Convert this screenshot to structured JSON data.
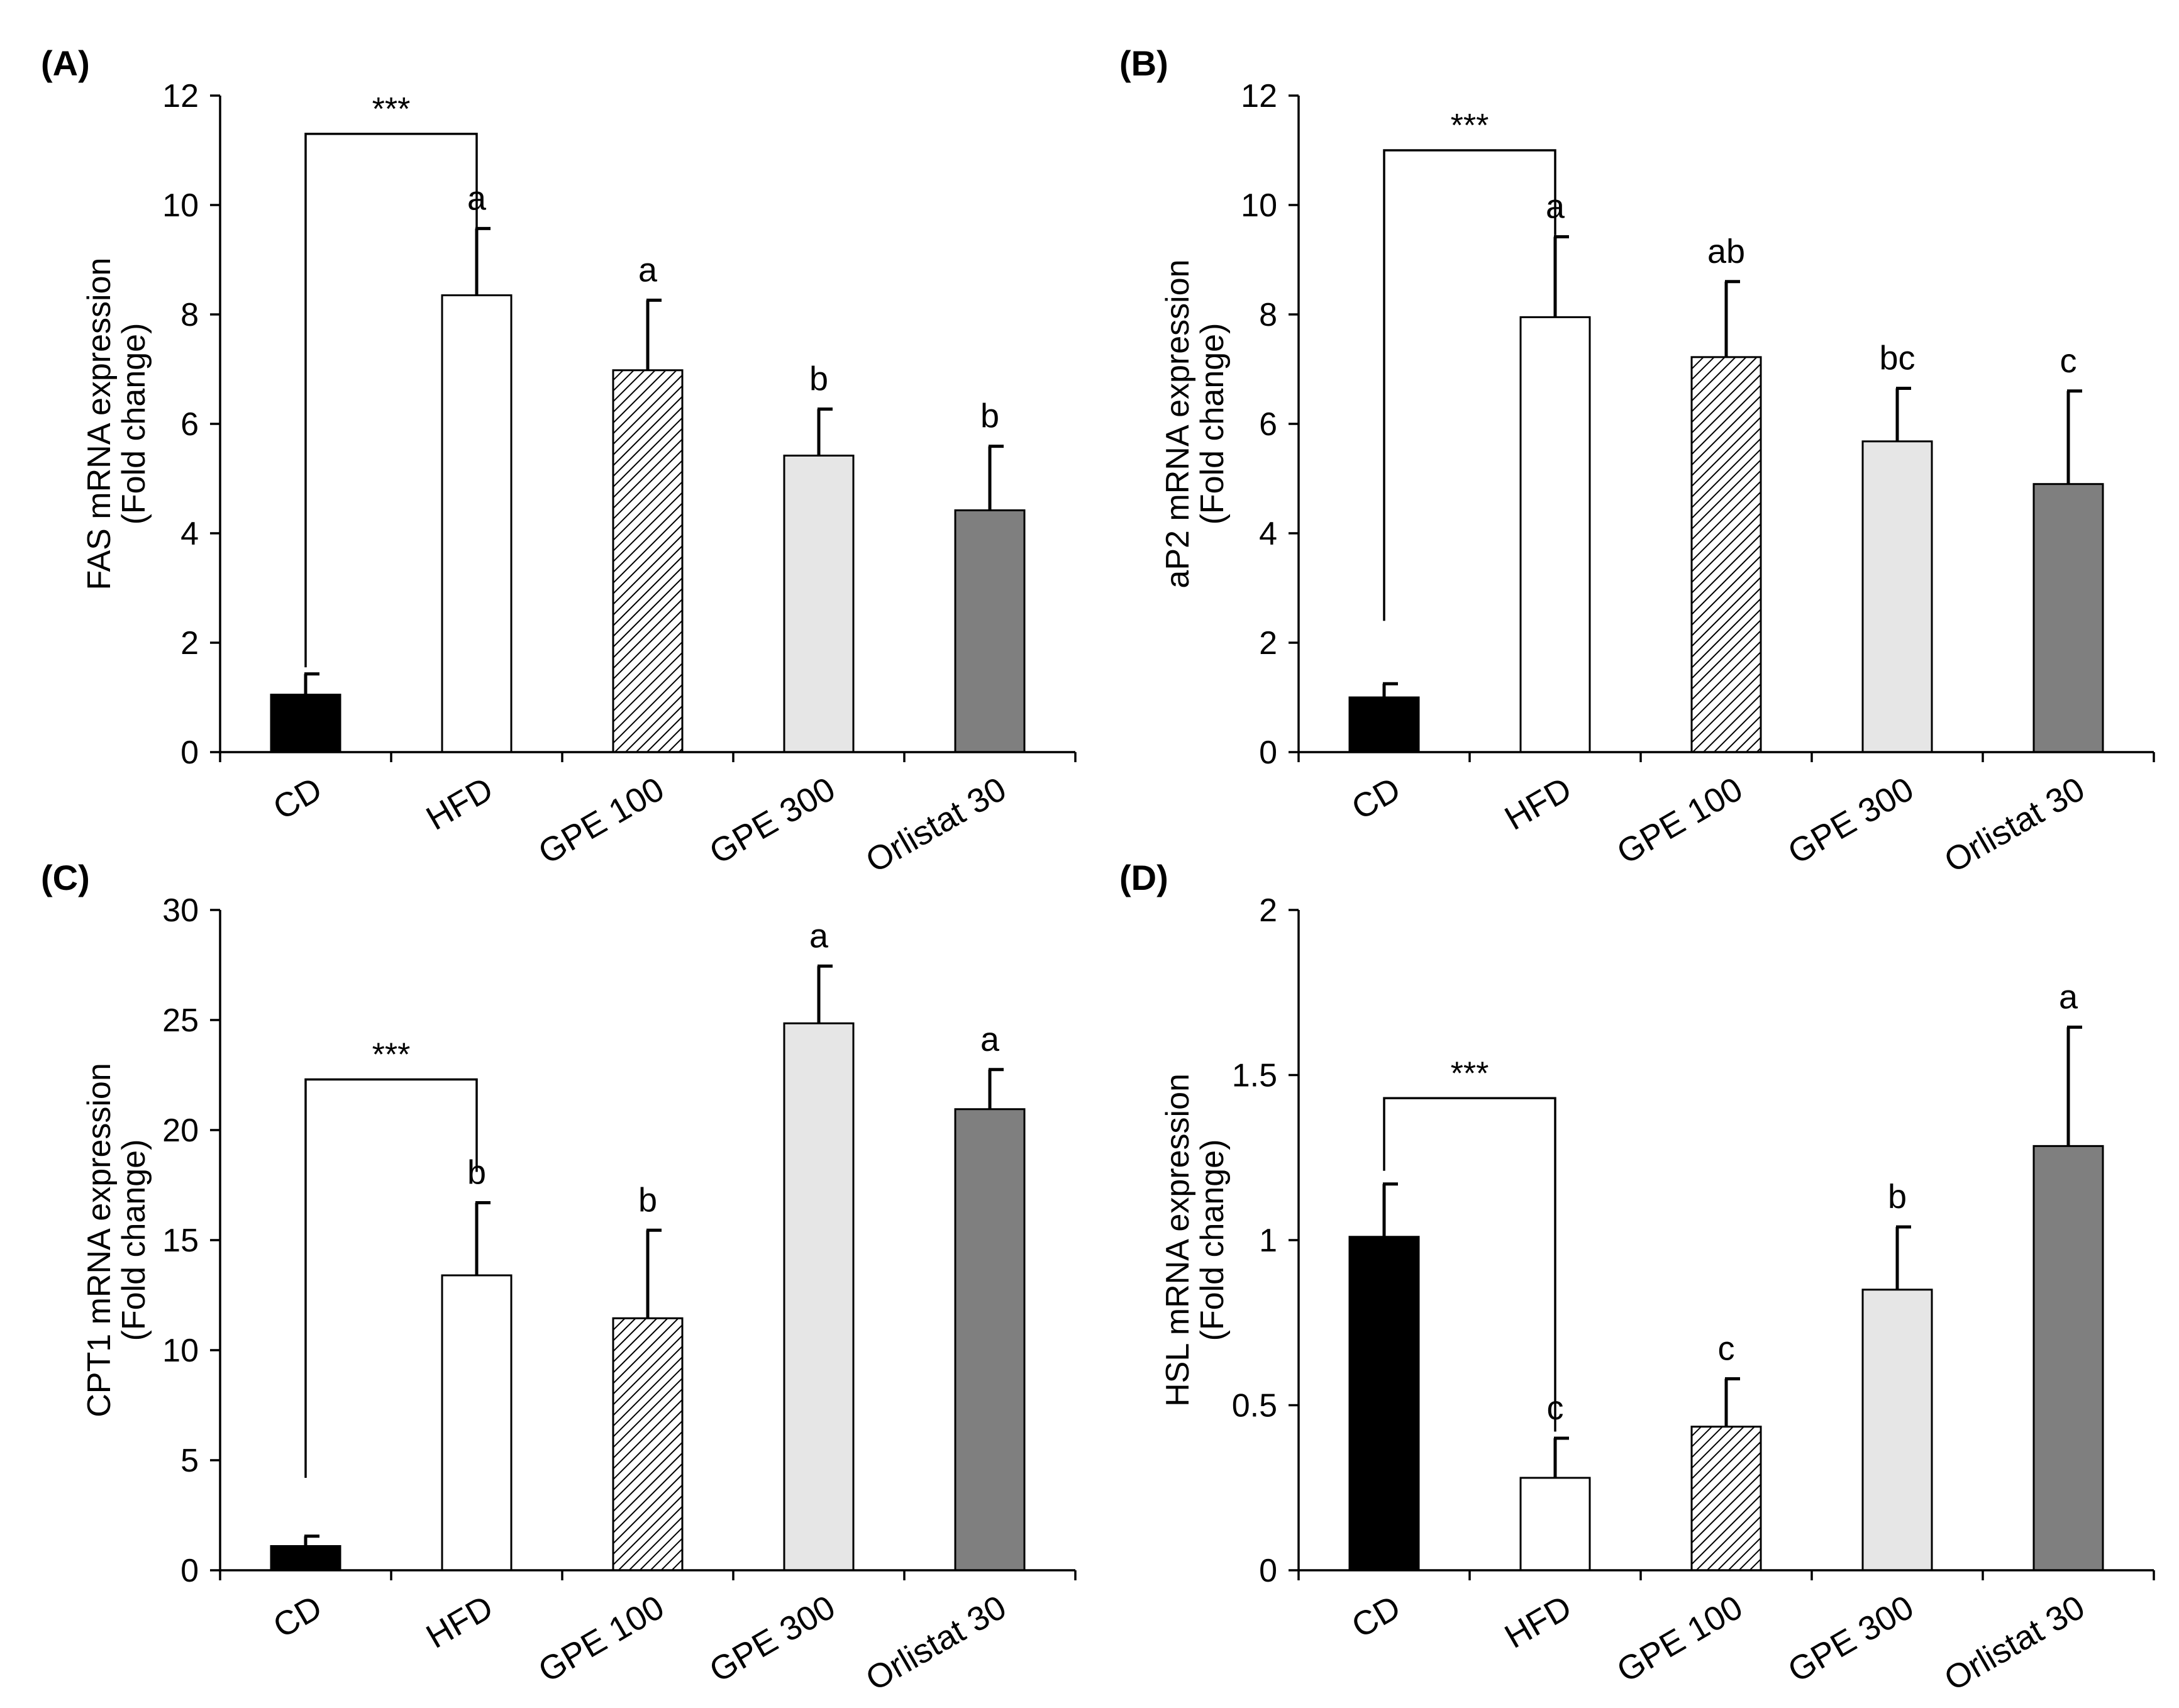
{
  "palette": {
    "CD": "#000000",
    "HFD": "#ffffff",
    "GPE 100": "hatch",
    "GPE 300": "#e6e6e6",
    "Orlistat 30": "#7f7f7f",
    "axis": "#000000"
  },
  "chart_data": [
    {
      "type": "bar",
      "panel": "(A)",
      "title": "",
      "ylabel_line1": "FAS mRNA expression",
      "ylabel_line2": "(Fold change)",
      "categories": [
        "CD",
        "HFD",
        "GPE 100",
        "GPE 300",
        "Orlistat 30"
      ],
      "values": [
        1.05,
        8.35,
        6.98,
        5.42,
        4.42
      ],
      "errors": [
        0.38,
        1.22,
        1.28,
        0.85,
        1.17
      ],
      "labels": [
        "",
        "a",
        "a",
        "b",
        "b"
      ],
      "ylim": [
        0,
        12
      ],
      "yticks": [
        "0",
        "2",
        "4",
        "6",
        "8",
        "10",
        "12"
      ],
      "significance": {
        "from": 0,
        "to": 1,
        "text": "***",
        "level": 11.3,
        "from_drop": 1.55,
        "to_drop": 8.75
      }
    },
    {
      "type": "bar",
      "panel": "(B)",
      "title": "",
      "ylabel_line1": "aP2 mRNA expression",
      "ylabel_line2": "(Fold change)",
      "categories": [
        "CD",
        "HFD",
        "GPE 100",
        "GPE 300",
        "Orlistat 30"
      ],
      "values": [
        1.0,
        7.95,
        7.22,
        5.68,
        4.9
      ],
      "errors": [
        0.25,
        1.47,
        1.38,
        0.97,
        1.7
      ],
      "labels": [
        "",
        "a",
        "ab",
        "bc",
        "c"
      ],
      "ylim": [
        0,
        12
      ],
      "yticks": [
        "0",
        "2",
        "4",
        "6",
        "8",
        "10",
        "12"
      ],
      "significance": {
        "from": 0,
        "to": 1,
        "text": "***",
        "level": 11.0,
        "from_drop": 2.4,
        "to_drop": 9.45
      }
    },
    {
      "type": "bar",
      "panel": "(C)",
      "title": "",
      "ylabel_line1": "CPT1 mRNA expression",
      "ylabel_line2": "(Fold change)",
      "categories": [
        "CD",
        "HFD",
        "GPE 100",
        "GPE 300",
        "Orlistat 30"
      ],
      "values": [
        1.1,
        13.4,
        11.45,
        24.85,
        20.95
      ],
      "errors": [
        0.45,
        3.3,
        4.0,
        2.6,
        1.8
      ],
      "labels": [
        "",
        "b",
        "b",
        "a",
        "a"
      ],
      "ylim": [
        0,
        30
      ],
      "yticks": [
        "0",
        "5",
        "10",
        "15",
        "20",
        "25",
        "30"
      ],
      "significance": {
        "from": 0,
        "to": 1,
        "text": "***",
        "level": 22.3,
        "from_drop": 4.2,
        "to_drop": 18.1
      }
    },
    {
      "type": "bar",
      "panel": "(D)",
      "title": "",
      "ylabel_line1": "HSL mRNA expression",
      "ylabel_line2": "(Fold change)",
      "categories": [
        "CD",
        "HFD",
        "GPE 100",
        "GPE 300",
        "Orlistat 30"
      ],
      "values": [
        1.01,
        0.28,
        0.435,
        0.85,
        1.285
      ],
      "errors": [
        0.16,
        0.12,
        0.145,
        0.19,
        0.36
      ],
      "labels": [
        "",
        "c",
        "c",
        "b",
        "a"
      ],
      "ylim": [
        0,
        2
      ],
      "yticks": [
        "0",
        "0.5",
        "1",
        "1.5",
        "2"
      ],
      "significance": {
        "from": 0,
        "to": 1,
        "text": "***",
        "level": 1.43,
        "from_drop": 1.21,
        "to_drop": 0.42
      }
    }
  ]
}
